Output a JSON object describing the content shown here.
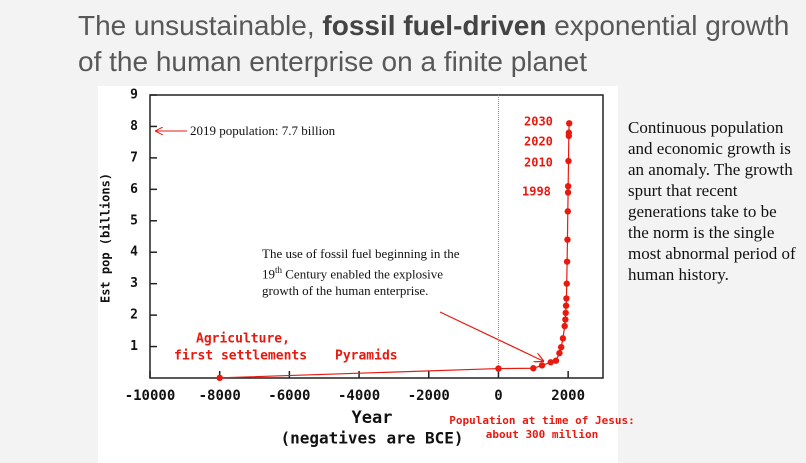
{
  "chart_data": {
    "type": "scatter-line",
    "title": {
      "before": "The unsustainable, ",
      "bold": "fossil fuel-driven",
      "after": " exponential growth of the human enterprise on a finite planet"
    },
    "xlabel": "Year",
    "xlabel_note": "(negatives are BCE)",
    "ylabel": "Est pop (billions)",
    "x": [
      -8000,
      0,
      1000,
      1250,
      1500,
      1650,
      1750,
      1800,
      1850,
      1900,
      1920,
      1930,
      1940,
      1950,
      1960,
      1970,
      1980,
      1990,
      1998,
      2000,
      2010,
      2019,
      2020,
      2030
    ],
    "y": [
      0.005,
      0.3,
      0.31,
      0.4,
      0.5,
      0.55,
      0.79,
      0.98,
      1.26,
      1.65,
      1.86,
      2.07,
      2.3,
      2.53,
      3.0,
      3.7,
      4.4,
      5.3,
      5.9,
      6.1,
      6.9,
      7.7,
      7.8,
      8.1
    ],
    "color": "#e8190f",
    "xlim": [
      -10000,
      3000
    ],
    "ylim": [
      0,
      9
    ],
    "xticks": [
      -10000,
      -8000,
      -6000,
      -4000,
      -2000,
      0,
      2000
    ],
    "yticks": [
      1,
      2,
      3,
      4,
      5,
      6,
      7,
      8,
      9
    ],
    "reference_x": 0,
    "annotations": {
      "population_2019": "2019 population: 7.7 billion",
      "years": [
        "2030",
        "2020",
        "2010",
        "1998"
      ],
      "agriculture": [
        "Agriculture,",
        "first settlements"
      ],
      "pyramids": "Pyramids",
      "jesus": [
        "Population at time of Jesus:",
        "about 300 million"
      ],
      "fossil_fuel": {
        "before": "The  use of fossil fuel beginning in the 19",
        "sup": "th",
        "after": " Century enabled the explosive growth of the human enterprise."
      }
    },
    "side_text": "Continuous population and economic growth is an anomaly. The growth spurt that recent generations take to be the norm is the single most abnormal period of human history."
  }
}
